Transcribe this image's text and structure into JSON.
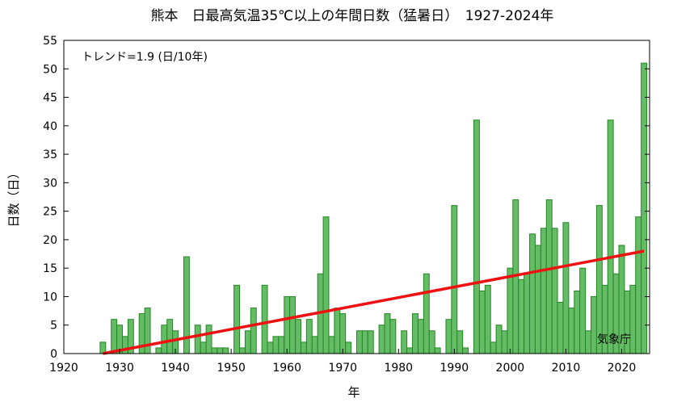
{
  "chart_data": {
    "type": "bar",
    "title": "熊本　日最高気温35℃以上の年間日数（猛暑日）　1927-2024年",
    "xlabel": "年",
    "ylabel": "日数（日）",
    "xlim": [
      1920,
      2025
    ],
    "ylim": [
      0,
      55
    ],
    "x_ticks": [
      1920,
      1930,
      1940,
      1950,
      1960,
      1970,
      1980,
      1990,
      2000,
      2010,
      2020
    ],
    "y_ticks": [
      0,
      5,
      10,
      15,
      20,
      25,
      30,
      35,
      40,
      45,
      50,
      55
    ],
    "grid": false,
    "colors": {
      "bar_fill": "#66bb66",
      "bar_edge": "#228822",
      "trend": "#ee1111"
    },
    "trend": {
      "label": "トレンド=1.9 (日/10年)",
      "x": [
        1927,
        2024
      ],
      "y": [
        0,
        18
      ]
    },
    "source": "気象庁",
    "years": [
      1927,
      1928,
      1929,
      1930,
      1931,
      1932,
      1933,
      1934,
      1935,
      1936,
      1937,
      1938,
      1939,
      1940,
      1941,
      1942,
      1943,
      1944,
      1945,
      1946,
      1947,
      1948,
      1949,
      1950,
      1951,
      1952,
      1953,
      1954,
      1955,
      1956,
      1957,
      1958,
      1959,
      1960,
      1961,
      1962,
      1963,
      1964,
      1965,
      1966,
      1967,
      1968,
      1969,
      1970,
      1971,
      1972,
      1973,
      1974,
      1975,
      1976,
      1977,
      1978,
      1979,
      1980,
      1981,
      1982,
      1983,
      1984,
      1985,
      1986,
      1987,
      1988,
      1989,
      1990,
      1991,
      1992,
      1993,
      1994,
      1995,
      1996,
      1997,
      1998,
      1999,
      2000,
      2001,
      2002,
      2003,
      2004,
      2005,
      2006,
      2007,
      2008,
      2009,
      2010,
      2011,
      2012,
      2013,
      2014,
      2015,
      2016,
      2017,
      2018,
      2019,
      2020,
      2021,
      2022,
      2023,
      2024
    ],
    "values": [
      2,
      0,
      6,
      5,
      3,
      6,
      0,
      7,
      8,
      0,
      1,
      5,
      6,
      4,
      0,
      17,
      0,
      5,
      2,
      5,
      1,
      1,
      1,
      0,
      12,
      1,
      4,
      8,
      0,
      12,
      2,
      3,
      3,
      10,
      10,
      6,
      2,
      6,
      3,
      14,
      24,
      3,
      8,
      7,
      2,
      0,
      4,
      4,
      4,
      0,
      5,
      7,
      6,
      0,
      4,
      1,
      7,
      6,
      14,
      4,
      1,
      0,
      6,
      26,
      4,
      1,
      0,
      41,
      11,
      12,
      2,
      5,
      4,
      15,
      27,
      13,
      14,
      21,
      19,
      22,
      27,
      22,
      9,
      23,
      8,
      11,
      15,
      4,
      10,
      26,
      12,
      41,
      14,
      19,
      11,
      12,
      24,
      51
    ]
  }
}
